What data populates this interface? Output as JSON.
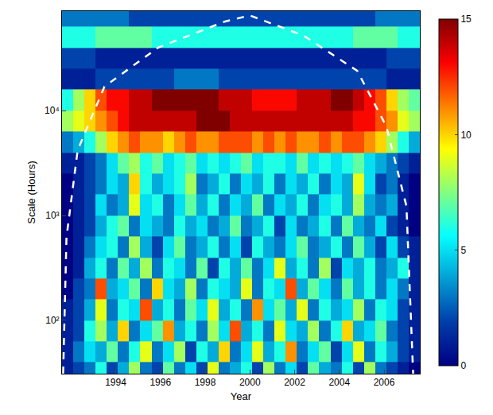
{
  "chart_data": {
    "type": "heatmap",
    "xlabel": "Year",
    "ylabel": "Scale (Hours)",
    "log": "y",
    "x": [
      1991.85,
      1992.35,
      1992.85,
      1993.35,
      1993.85,
      1994.35,
      1994.85,
      1995.35,
      1995.85,
      1996.35,
      1996.85,
      1997.35,
      1997.85,
      1998.35,
      1998.85,
      1999.35,
      1999.85,
      2000.35,
      2000.85,
      2001.35,
      2001.85,
      2002.35,
      2002.85,
      2003.35,
      2003.85,
      2004.35,
      2004.85,
      2005.35,
      2005.85,
      2006.35,
      2006.85,
      2007.35
    ],
    "y": [
      32,
      50,
      79,
      126,
      200,
      316,
      501,
      794,
      1259,
      1995,
      3162,
      5012,
      7943,
      12589,
      19953,
      31623,
      50119,
      79433
    ],
    "z": [
      [
        1,
        2,
        3,
        6,
        2,
        4,
        8,
        3,
        2,
        7,
        3,
        5,
        2,
        9,
        3,
        4,
        6,
        2,
        8,
        3,
        5,
        2,
        7,
        4,
        3,
        6,
        2,
        8,
        3,
        2,
        1,
        0
      ],
      [
        1,
        3,
        5,
        4,
        7,
        3,
        6,
        9,
        3,
        5,
        8,
        2,
        6,
        4,
        10,
        3,
        5,
        9,
        4,
        6,
        11,
        3,
        5,
        7,
        2,
        5,
        9,
        3,
        6,
        4,
        2,
        1
      ],
      [
        1,
        2,
        6,
        8,
        4,
        10,
        3,
        5,
        7,
        11,
        4,
        6,
        3,
        8,
        5,
        12,
        4,
        6,
        3,
        9,
        5,
        4,
        8,
        3,
        6,
        10,
        4,
        5,
        7,
        3,
        2,
        1
      ],
      [
        1,
        2,
        4,
        9,
        3,
        6,
        5,
        12,
        4,
        6,
        3,
        7,
        5,
        9,
        4,
        6,
        3,
        11,
        5,
        7,
        4,
        9,
        3,
        6,
        4,
        5,
        8,
        3,
        6,
        5,
        2,
        1
      ],
      [
        0,
        2,
        3,
        12,
        4,
        5,
        7,
        3,
        10,
        5,
        4,
        8,
        3,
        6,
        5,
        4,
        9,
        3,
        6,
        5,
        12,
        4,
        7,
        5,
        3,
        7,
        4,
        6,
        3,
        5,
        3,
        1
      ],
      [
        0,
        1,
        4,
        6,
        3,
        7,
        4,
        8,
        3,
        6,
        5,
        3,
        7,
        2,
        6,
        4,
        7,
        3,
        5,
        9,
        4,
        6,
        3,
        8,
        2,
        5,
        4,
        6,
        3,
        4,
        6,
        1
      ],
      [
        0,
        1,
        3,
        5,
        6,
        3,
        8,
        4,
        2,
        5,
        7,
        3,
        4,
        6,
        3,
        5,
        2,
        6,
        4,
        3,
        5,
        7,
        3,
        4,
        6,
        3,
        7,
        4,
        2,
        5,
        2,
        1
      ],
      [
        0,
        1,
        2,
        4,
        6,
        7,
        3,
        5,
        4,
        3,
        6,
        4,
        5,
        3,
        4,
        7,
        3,
        4,
        6,
        2,
        5,
        3,
        4,
        6,
        3,
        7,
        4,
        3,
        5,
        2,
        1,
        0
      ],
      [
        0,
        1,
        2,
        5,
        3,
        4,
        9,
        5,
        6,
        3,
        5,
        7,
        4,
        6,
        3,
        5,
        4,
        7,
        3,
        5,
        4,
        6,
        3,
        5,
        6,
        4,
        8,
        4,
        3,
        4,
        1,
        0
      ],
      [
        0,
        1,
        2,
        3,
        5,
        4,
        10,
        6,
        4,
        5,
        6,
        8,
        3,
        4,
        6,
        3,
        5,
        4,
        6,
        3,
        5,
        4,
        6,
        3,
        5,
        4,
        9,
        5,
        2,
        3,
        1,
        0
      ],
      [
        1,
        1,
        2,
        3,
        5,
        7,
        8,
        6,
        7,
        5,
        6,
        7,
        5,
        6,
        5,
        6,
        7,
        5,
        6,
        6,
        5,
        7,
        5,
        6,
        5,
        6,
        7,
        5,
        4,
        3,
        2,
        1
      ],
      [
        3,
        4,
        6,
        8,
        10,
        11,
        12,
        11,
        11,
        10,
        11,
        12,
        11,
        11,
        12,
        12,
        12,
        11,
        12,
        11,
        12,
        11,
        11,
        12,
        11,
        12,
        12,
        11,
        10,
        8,
        6,
        4
      ],
      [
        8,
        9,
        10,
        11,
        12,
        13,
        14,
        14,
        14,
        14,
        14,
        14,
        15,
        15,
        15,
        14,
        14,
        14,
        14,
        14,
        14,
        14,
        14,
        14,
        14,
        14,
        13,
        13,
        12,
        11,
        9,
        8
      ],
      [
        6,
        8,
        10,
        12,
        13,
        13,
        14,
        14,
        15,
        15,
        15,
        15,
        15,
        15,
        14,
        14,
        14,
        13,
        13,
        13,
        13,
        14,
        14,
        14,
        15,
        15,
        14,
        13,
        12,
        10,
        8,
        7
      ],
      [
        1,
        1,
        1,
        2,
        2,
        2,
        2,
        2,
        2,
        2,
        3,
        3,
        3,
        3,
        2,
        2,
        2,
        2,
        2,
        2,
        2,
        2,
        2,
        2,
        2,
        2,
        2,
        2,
        2,
        1,
        1,
        1
      ],
      [
        2,
        2,
        2,
        1,
        1,
        1,
        1,
        1,
        1,
        1,
        1,
        1,
        1,
        1,
        1,
        1,
        1,
        1,
        1,
        1,
        1,
        1,
        1,
        1,
        1,
        1,
        1,
        1,
        1,
        2,
        2,
        2
      ],
      [
        6,
        6,
        6,
        7,
        7,
        7,
        7,
        7,
        6,
        6,
        6,
        6,
        6,
        6,
        6,
        6,
        6,
        6,
        6,
        6,
        6,
        6,
        6,
        6,
        6,
        6,
        7,
        7,
        7,
        7,
        6,
        6
      ],
      [
        3,
        3,
        3,
        3,
        3,
        3,
        2,
        2,
        2,
        2,
        2,
        2,
        2,
        2,
        2,
        2,
        2,
        2,
        2,
        2,
        2,
        2,
        2,
        2,
        2,
        2,
        2,
        2,
        3,
        3,
        3,
        3
      ]
    ],
    "zlim": [
      0,
      15
    ],
    "zticks": [
      0,
      5,
      10,
      15
    ],
    "xlim": [
      1991.6,
      2007.6
    ],
    "xticks": [
      1994,
      1996,
      1998,
      2000,
      2002,
      2004,
      2006
    ],
    "ylim": [
      31,
      89000
    ],
    "yticks": [
      {
        "value": 100,
        "label": "10²"
      },
      {
        "value": 1000,
        "label": "10³"
      },
      {
        "value": 10000,
        "label": "10⁴"
      }
    ],
    "series": [
      {
        "type": "line",
        "color": "white",
        "line_style": "dashed",
        "x": [
          1991.65,
          1991.8,
          1992.3,
          1993.5,
          1995.9,
          1998.9,
          2000.0,
          2002.4,
          2004.8,
          2006.1,
          2007.0,
          2007.3
        ],
        "values": [
          31,
          620,
          4200,
          17000,
          40000,
          71000,
          81000,
          52000,
          24000,
          7100,
          1230,
          31
        ]
      }
    ]
  }
}
